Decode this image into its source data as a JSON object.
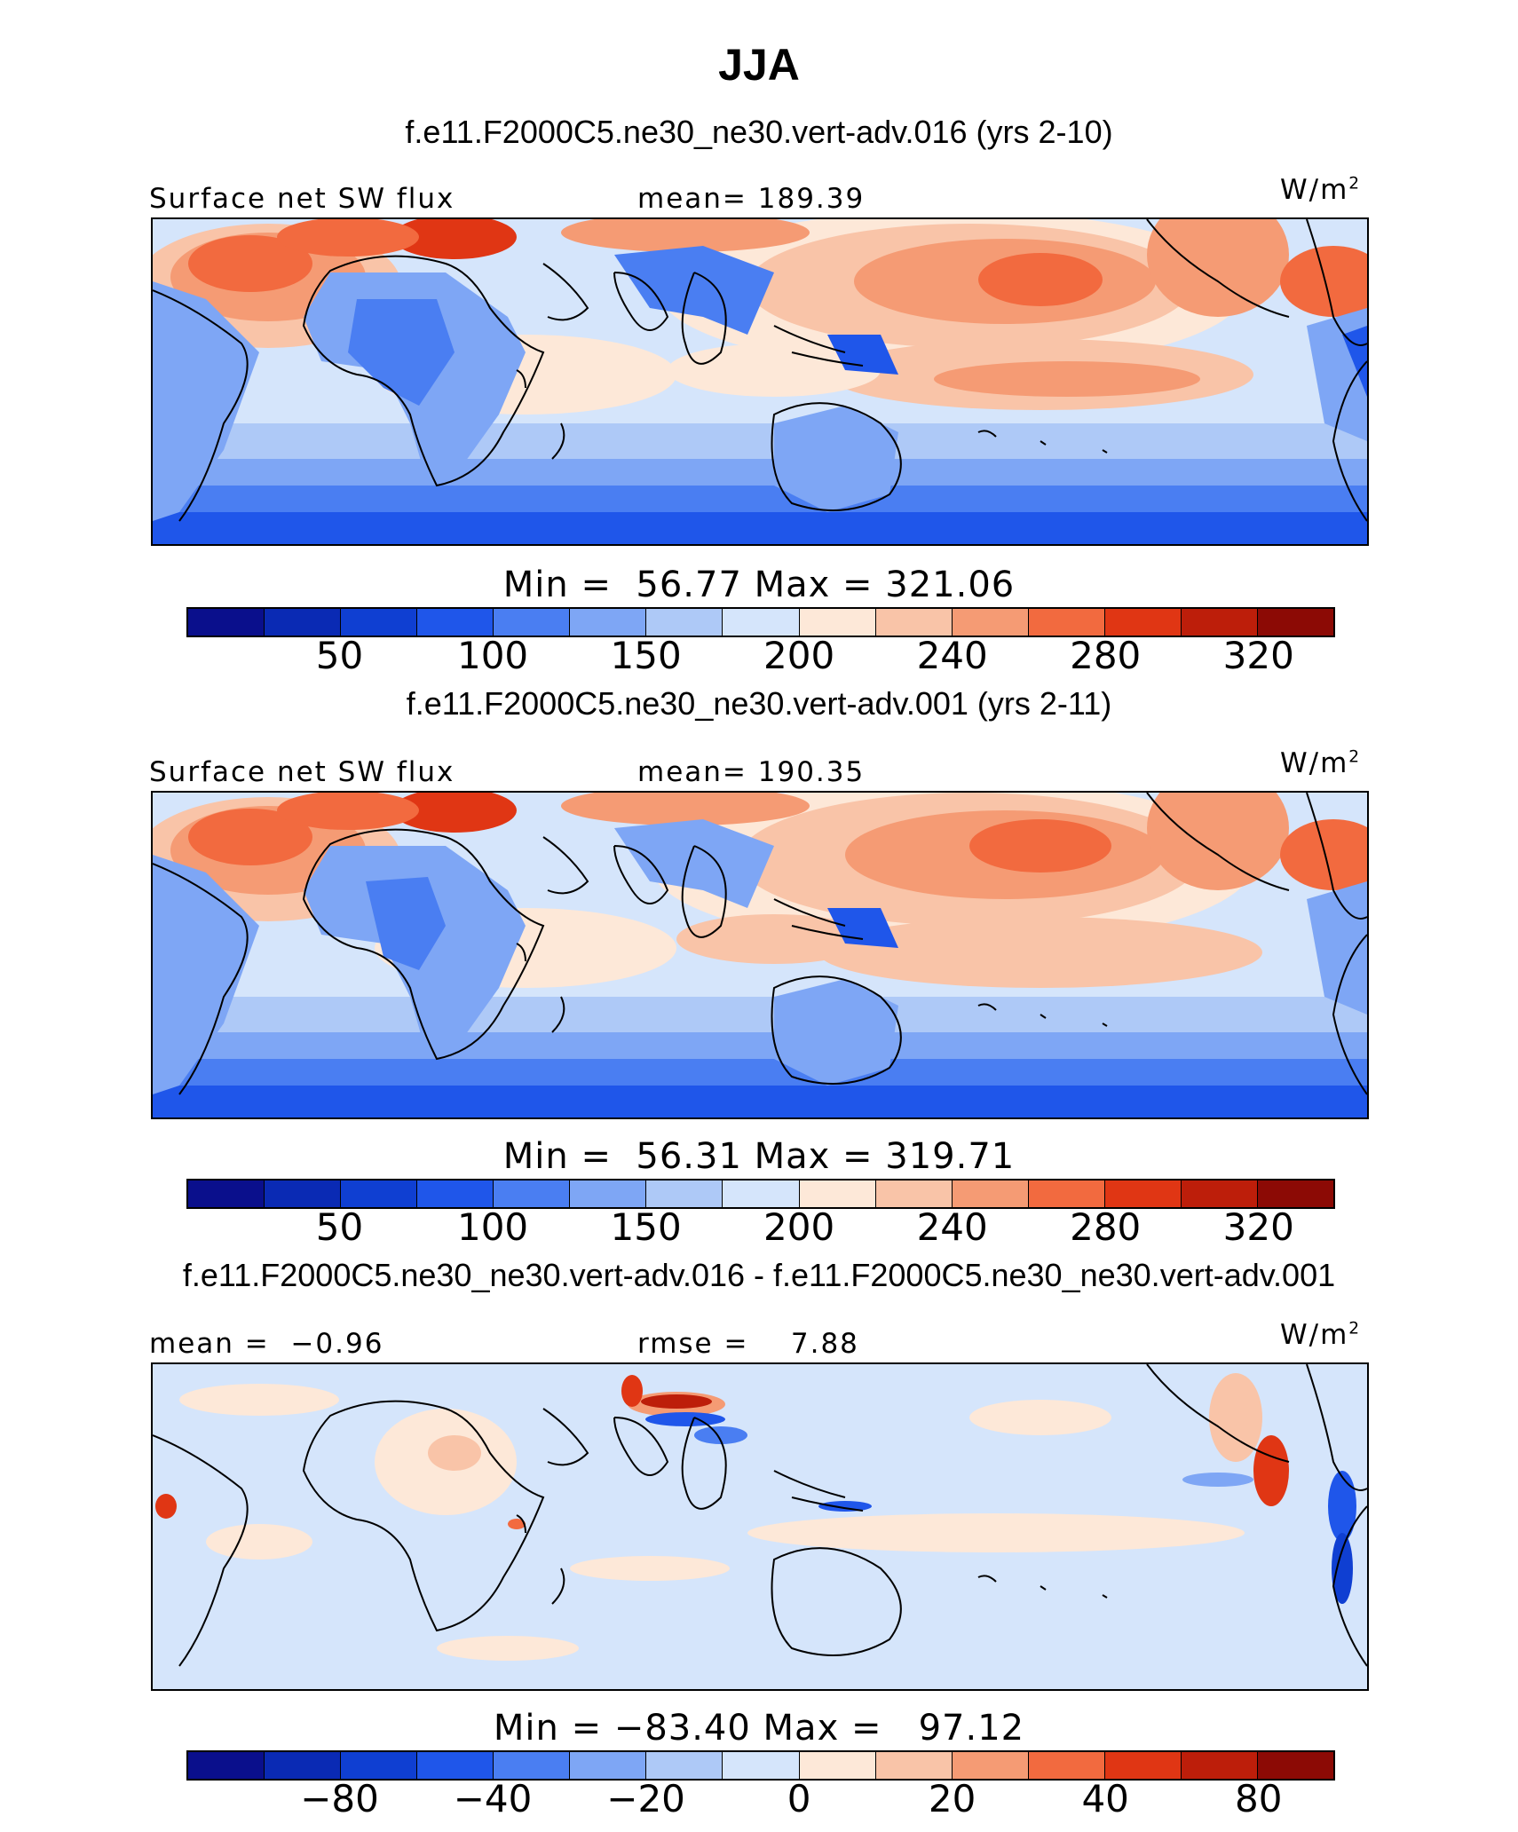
{
  "title": "JJA",
  "units": "W/m",
  "units_sup": "2",
  "panels": [
    {
      "case": "f.e11.F2000C5.ne30_ne30.vert-adv.016 (yrs 2-10)",
      "left_label": "Surface net SW flux",
      "center_label": "mean= 189.39",
      "minmax": "Min =  56.77 Max = 321.06",
      "ticks": [
        "50",
        "100",
        "150",
        "200",
        "240",
        "280",
        "320"
      ]
    },
    {
      "case": "f.e11.F2000C5.ne30_ne30.vert-adv.001 (yrs 2-11)",
      "left_label": "Surface net SW flux",
      "center_label": "mean= 190.35",
      "minmax": "Min =  56.31 Max = 319.71",
      "ticks": [
        "50",
        "100",
        "150",
        "200",
        "240",
        "280",
        "320"
      ]
    },
    {
      "case": "f.e11.F2000C5.ne30_ne30.vert-adv.016 - f.e11.F2000C5.ne30_ne30.vert-adv.001",
      "left_label": "mean =  −0.96",
      "center_label": "rmse =    7.88",
      "minmax": "Min = −83.40 Max =   97.12",
      "ticks": [
        "−80",
        "−40",
        "−20",
        "0",
        "20",
        "40",
        "80"
      ]
    }
  ],
  "colorbar_colors": [
    "#0a0f8c",
    "#0a2ab4",
    "#0f3fd2",
    "#1f56ea",
    "#4a7ef2",
    "#7ea6f5",
    "#aec9f7",
    "#d5e5fb",
    "#fde8d8",
    "#f9c4a8",
    "#f59b74",
    "#f26a3f",
    "#e03614",
    "#bd1e0a",
    "#8c0a05"
  ]
}
